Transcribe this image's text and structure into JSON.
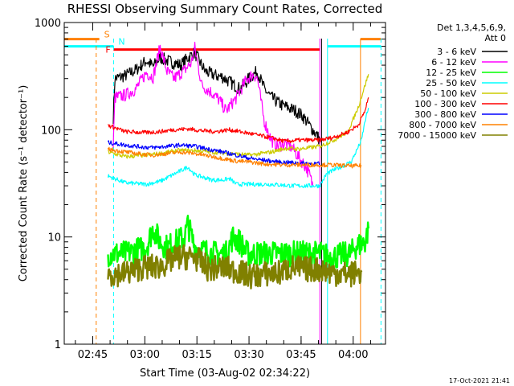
{
  "chart_data": {
    "type": "line",
    "title": "RHESSI Observing Summary Count Rates, Corrected",
    "xlabel": "Start Time (03-Aug-02 02:34:22)",
    "ylabel": "Corrected Count Rate (s⁻¹ detector⁻¹)",
    "y_scale": "log",
    "ylim": [
      1,
      1000
    ],
    "xlim_minutes": [
      2.4,
      94.9
    ],
    "y_ticks": [
      {
        "value": 1,
        "label": "1"
      },
      {
        "value": 10,
        "label": "10"
      },
      {
        "value": 100,
        "label": "100"
      },
      {
        "value": 1000,
        "label": "1000"
      }
    ],
    "x_ticks": [
      {
        "t": 10.6,
        "label": "02:45"
      },
      {
        "t": 25.6,
        "label": "03:00"
      },
      {
        "t": 40.6,
        "label": "03:15"
      },
      {
        "t": 55.6,
        "label": "03:30"
      },
      {
        "t": 70.6,
        "label": "03:45"
      },
      {
        "t": 85.6,
        "label": "04:00"
      }
    ],
    "legend_header": [
      "Det 1,3,4,5,6,9,",
      "Att 0"
    ],
    "legend_position": "right",
    "series": [
      {
        "name": "3 - 6 keV",
        "color": "#000000",
        "points": [
          [
            16.5,
            130
          ],
          [
            17,
            300
          ],
          [
            20,
            320
          ],
          [
            23,
            360
          ],
          [
            26,
            440
          ],
          [
            28,
            390
          ],
          [
            30,
            470
          ],
          [
            33,
            430
          ],
          [
            36,
            400
          ],
          [
            38,
            470
          ],
          [
            40,
            520
          ],
          [
            43,
            350
          ],
          [
            46,
            320
          ],
          [
            48,
            310
          ],
          [
            50,
            280
          ],
          [
            53,
            240
          ],
          [
            56,
            310
          ],
          [
            58,
            350
          ],
          [
            60,
            240
          ],
          [
            62,
            200
          ],
          [
            65,
            170
          ],
          [
            67,
            160
          ],
          [
            69,
            150
          ],
          [
            71,
            135
          ],
          [
            73,
            110
          ],
          [
            75,
            90
          ],
          [
            76,
            80
          ]
        ]
      },
      {
        "name": "6 - 12 keV",
        "color": "#ff00ff",
        "points": [
          [
            16.5,
            70
          ],
          [
            17,
            200
          ],
          [
            20,
            210
          ],
          [
            23,
            240
          ],
          [
            26,
            340
          ],
          [
            28,
            310
          ],
          [
            30,
            590
          ],
          [
            32,
            350
          ],
          [
            34,
            300
          ],
          [
            37,
            360
          ],
          [
            39,
            420
          ],
          [
            40,
            580
          ],
          [
            42,
            260
          ],
          [
            45,
            220
          ],
          [
            47,
            190
          ],
          [
            49,
            150
          ],
          [
            52,
            200
          ],
          [
            55,
            300
          ],
          [
            57,
            330
          ],
          [
            58,
            300
          ],
          [
            60,
            120
          ],
          [
            62,
            80
          ],
          [
            64,
            70
          ],
          [
            66,
            75
          ],
          [
            68,
            68
          ],
          [
            70,
            55
          ],
          [
            72,
            45
          ],
          [
            73,
            38
          ],
          [
            74,
            30
          ]
        ]
      },
      {
        "name": "12 - 25 keV",
        "color": "#00ff00",
        "points": [
          [
            15,
            7
          ],
          [
            20,
            7
          ],
          [
            26,
            8
          ],
          [
            28,
            12
          ],
          [
            30,
            9
          ],
          [
            32,
            8
          ],
          [
            37,
            10
          ],
          [
            38,
            13
          ],
          [
            40,
            8
          ],
          [
            45,
            7
          ],
          [
            49,
            7
          ],
          [
            51,
            10
          ],
          [
            53,
            9
          ],
          [
            55,
            7
          ],
          [
            62,
            7
          ],
          [
            70,
            7
          ],
          [
            76,
            7
          ],
          [
            79,
            6.5
          ],
          [
            85,
            7
          ],
          [
            86,
            8
          ],
          [
            89,
            9
          ],
          [
            90,
            12
          ]
        ]
      },
      {
        "name": "25 - 50 keV",
        "color": "#00ffff",
        "points": [
          [
            15,
            37
          ],
          [
            20,
            32
          ],
          [
            26,
            31
          ],
          [
            30,
            33
          ],
          [
            35,
            40
          ],
          [
            38,
            45
          ],
          [
            40,
            38
          ],
          [
            45,
            34
          ],
          [
            48,
            34
          ],
          [
            50,
            35
          ],
          [
            52,
            31
          ],
          [
            56,
            31
          ],
          [
            62,
            31
          ],
          [
            68,
            30
          ],
          [
            76,
            30
          ],
          [
            78,
            39
          ],
          [
            80,
            42
          ],
          [
            85,
            50
          ],
          [
            88,
            80
          ],
          [
            89,
            120
          ],
          [
            90,
            160
          ]
        ]
      },
      {
        "name": "50 - 100 keV",
        "color": "#cccc00",
        "points": [
          [
            15,
            62
          ],
          [
            20,
            56
          ],
          [
            26,
            58
          ],
          [
            30,
            60
          ],
          [
            35,
            64
          ],
          [
            40,
            64
          ],
          [
            45,
            62
          ],
          [
            50,
            60
          ],
          [
            56,
            58
          ],
          [
            62,
            62
          ],
          [
            66,
            67
          ],
          [
            70,
            66
          ],
          [
            76,
            70
          ],
          [
            80,
            80
          ],
          [
            84,
            95
          ],
          [
            87,
            160
          ],
          [
            89,
            260
          ],
          [
            90,
            330
          ]
        ]
      },
      {
        "name": "100 - 300 keV",
        "color": "#ff0000",
        "points": [
          [
            15,
            110
          ],
          [
            20,
            96
          ],
          [
            26,
            94
          ],
          [
            30,
            96
          ],
          [
            34,
            100
          ],
          [
            38,
            102
          ],
          [
            42,
            98
          ],
          [
            46,
            96
          ],
          [
            50,
            100
          ],
          [
            56,
            92
          ],
          [
            62,
            84
          ],
          [
            66,
            78
          ],
          [
            70,
            80
          ],
          [
            76,
            80
          ],
          [
            80,
            85
          ],
          [
            84,
            95
          ],
          [
            87,
            110
          ],
          [
            89,
            150
          ],
          [
            90,
            200
          ]
        ]
      },
      {
        "name": "300 - 800 keV",
        "color": "#0000ff",
        "points": [
          [
            15,
            76
          ],
          [
            20,
            72
          ],
          [
            25,
            69
          ],
          [
            28,
            68
          ],
          [
            32,
            70
          ],
          [
            36,
            72
          ],
          [
            40,
            70
          ],
          [
            44,
            66
          ],
          [
            48,
            62
          ],
          [
            52,
            58
          ],
          [
            56,
            54
          ],
          [
            60,
            52
          ],
          [
            64,
            50
          ],
          [
            70,
            49
          ],
          [
            76,
            48
          ]
        ]
      },
      {
        "name": "800 - 7000 keV",
        "color": "#ff8000",
        "points": [
          [
            15,
            66
          ],
          [
            20,
            62
          ],
          [
            25,
            59
          ],
          [
            28,
            58
          ],
          [
            32,
            60
          ],
          [
            36,
            62
          ],
          [
            40,
            60
          ],
          [
            44,
            57
          ],
          [
            48,
            54
          ],
          [
            52,
            51
          ],
          [
            56,
            50
          ],
          [
            60,
            48
          ],
          [
            66,
            47
          ],
          [
            72,
            47
          ],
          [
            76,
            47
          ],
          [
            79,
            47
          ],
          [
            85,
            46
          ],
          [
            88,
            46
          ]
        ]
      },
      {
        "name": "7000 - 15000 keV",
        "color": "#808000",
        "points": [
          [
            15,
            4.5
          ],
          [
            20,
            4.6
          ],
          [
            25,
            5.2
          ],
          [
            30,
            5.3
          ],
          [
            35,
            6.5
          ],
          [
            40,
            6.5
          ],
          [
            44,
            5.0
          ],
          [
            48,
            5.2
          ],
          [
            52,
            4.8
          ],
          [
            56,
            4.3
          ],
          [
            60,
            4.5
          ],
          [
            64,
            4.6
          ],
          [
            68,
            5.2
          ],
          [
            72,
            5.0
          ],
          [
            76,
            5.0
          ],
          [
            80,
            4.6
          ],
          [
            85,
            4.5
          ],
          [
            88,
            4.7
          ]
        ]
      }
    ],
    "horizontal_flags": [
      {
        "label": "S",
        "color": "#ff8000",
        "from": 2.4,
        "to": 12.5,
        "y": 700
      },
      {
        "label": "N",
        "color": "#00ffff",
        "from": 2.4,
        "to": 16.6,
        "y": 600
      },
      {
        "label": "F",
        "color": "#ff0000",
        "from": 16.6,
        "to": 76.0,
        "y": 560
      },
      {
        "label": "",
        "color": "#00ffff",
        "from": 78.2,
        "to": 93.6,
        "y": 600
      },
      {
        "label": "",
        "color": "#ff8000",
        "from": 87.7,
        "to": 93.6,
        "y": 700
      }
    ],
    "vertical_markers": [
      {
        "t": 11.6,
        "color": "#ff8000",
        "style": "dashed"
      },
      {
        "t": 16.6,
        "color": "#00ffff",
        "style": "dashed"
      },
      {
        "t": 76.0,
        "color": "#ff00ff",
        "style": "solid"
      },
      {
        "t": 76.5,
        "color": "#000000",
        "style": "solid"
      },
      {
        "t": 78.2,
        "color": "#00ffff",
        "style": "solid"
      },
      {
        "t": 87.7,
        "color": "#ff8000",
        "style": "solid"
      },
      {
        "t": 93.6,
        "color": "#00ffff",
        "style": "dashed"
      }
    ]
  },
  "timestamp": "17-Oct-2021 21:41"
}
